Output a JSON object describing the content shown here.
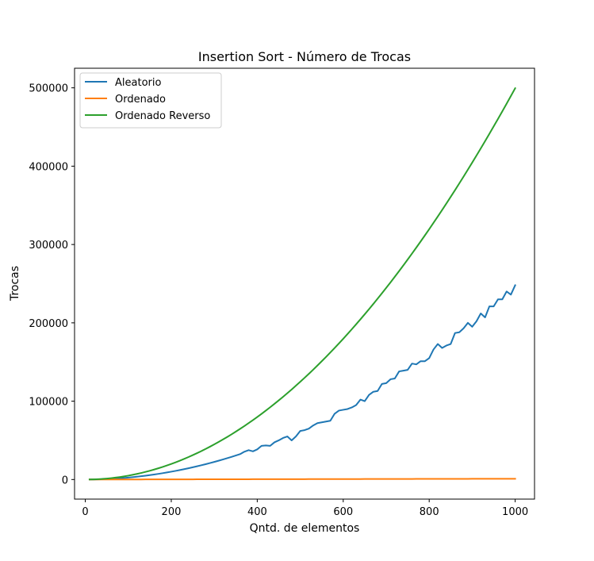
{
  "chart_data": {
    "type": "line",
    "title": "Insertion Sort - Número de Trocas",
    "xlabel": "Qntd. de elementos",
    "ylabel": "Trocas",
    "xlim": [
      -25,
      1045
    ],
    "ylim": [
      -25000,
      525000
    ],
    "xticks": [
      0,
      200,
      400,
      600,
      800,
      1000
    ],
    "xtick_labels": [
      "0",
      "200",
      "400",
      "600",
      "800",
      "1000"
    ],
    "yticks": [
      0,
      100000,
      200000,
      300000,
      400000,
      500000
    ],
    "ytick_labels": [
      "0",
      "100000",
      "200000",
      "300000",
      "400000",
      "500000"
    ],
    "grid": false,
    "legend_position": "top-left",
    "x": [
      10,
      20,
      30,
      40,
      50,
      60,
      70,
      80,
      90,
      100,
      110,
      120,
      130,
      140,
      150,
      160,
      170,
      180,
      190,
      200,
      210,
      220,
      230,
      240,
      250,
      260,
      270,
      280,
      290,
      300,
      310,
      320,
      330,
      340,
      350,
      360,
      370,
      380,
      390,
      400,
      410,
      420,
      430,
      440,
      450,
      460,
      470,
      480,
      490,
      500,
      510,
      520,
      530,
      540,
      550,
      560,
      570,
      580,
      590,
      600,
      610,
      620,
      630,
      640,
      650,
      660,
      670,
      680,
      690,
      700,
      710,
      720,
      730,
      740,
      750,
      760,
      770,
      780,
      790,
      800,
      810,
      820,
      830,
      840,
      850,
      860,
      870,
      880,
      890,
      900,
      910,
      920,
      930,
      940,
      950,
      960,
      970,
      980,
      990,
      1000
    ],
    "series": [
      {
        "name": "Aleatorio",
        "color": "#1f77b4",
        "values": [
          25,
          100,
          225,
          400,
          625,
          900,
          1225,
          1600,
          2025,
          2500,
          3025,
          3600,
          4225,
          4900,
          5625,
          6400,
          7225,
          8100,
          9025,
          10000,
          11025,
          12100,
          13225,
          14400,
          15625,
          16900,
          18225,
          19600,
          21025,
          22500,
          24025,
          25600,
          27225,
          28900,
          30625,
          32400,
          35500,
          37500,
          36000,
          38500,
          43000,
          43500,
          43000,
          47500,
          50000,
          53000,
          55000,
          50000,
          55000,
          62000,
          63000,
          65000,
          69000,
          72000,
          73000,
          74000,
          75000,
          84000,
          88000,
          89000,
          90000,
          92000,
          95000,
          102000,
          100000,
          108000,
          112000,
          113000,
          122000,
          123000,
          128000,
          129000,
          138000,
          139000,
          140000,
          148000,
          147000,
          151000,
          151000,
          155000,
          166000,
          173000,
          168000,
          171000,
          173000,
          187000,
          188000,
          193000,
          200000,
          195000,
          202000,
          212000,
          207000,
          221000,
          221000,
          230000,
          230000,
          240000,
          236000,
          248000
        ]
      },
      {
        "name": "Ordenado",
        "color": "#ff7f0e",
        "values": [
          9,
          19,
          29,
          39,
          49,
          59,
          69,
          79,
          89,
          99,
          109,
          119,
          129,
          139,
          149,
          159,
          169,
          179,
          189,
          199,
          209,
          219,
          229,
          239,
          249,
          259,
          269,
          279,
          289,
          299,
          309,
          319,
          329,
          339,
          349,
          359,
          369,
          379,
          389,
          399,
          409,
          419,
          429,
          439,
          449,
          459,
          469,
          479,
          489,
          499,
          509,
          519,
          529,
          539,
          549,
          559,
          569,
          579,
          589,
          599,
          609,
          619,
          629,
          639,
          649,
          659,
          669,
          679,
          689,
          699,
          709,
          719,
          729,
          739,
          749,
          759,
          769,
          779,
          789,
          799,
          809,
          819,
          829,
          839,
          849,
          859,
          869,
          879,
          889,
          899,
          909,
          919,
          929,
          939,
          949,
          959,
          969,
          979,
          989,
          999
        ]
      },
      {
        "name": "Ordenado Reverso",
        "color": "#2ca02c",
        "values": [
          45,
          190,
          435,
          780,
          1225,
          1770,
          2415,
          3160,
          4005,
          4950,
          5995,
          7140,
          8385,
          9730,
          11175,
          12720,
          14365,
          16110,
          17955,
          19900,
          21945,
          24090,
          26335,
          28680,
          31125,
          33670,
          36315,
          39060,
          41905,
          44850,
          47895,
          51040,
          54285,
          57630,
          61075,
          64620,
          68265,
          72010,
          75855,
          79800,
          83845,
          87990,
          92235,
          96580,
          101025,
          105570,
          110215,
          114960,
          119805,
          124750,
          129795,
          134940,
          140185,
          145530,
          150975,
          156520,
          162165,
          167910,
          173755,
          179700,
          185745,
          191890,
          198135,
          204480,
          210925,
          217470,
          224115,
          230860,
          237705,
          244650,
          251695,
          258840,
          266085,
          273430,
          280875,
          288420,
          296065,
          303810,
          311655,
          319600,
          327645,
          335790,
          344035,
          352380,
          360825,
          369370,
          378015,
          386760,
          395605,
          404550,
          413595,
          422740,
          431985,
          441330,
          450775,
          460320,
          469965,
          479710,
          489555,
          499500
        ]
      }
    ]
  }
}
